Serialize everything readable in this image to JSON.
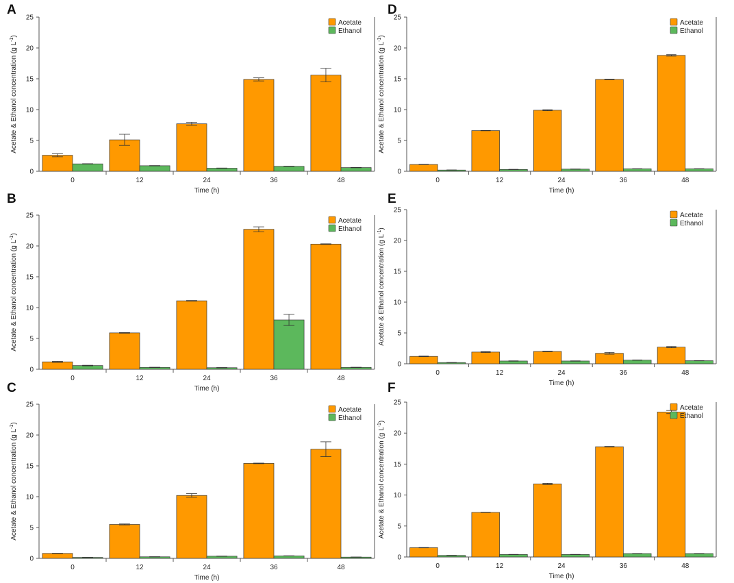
{
  "colors": {
    "acetate": "#ff9900",
    "ethanol": "#5cb85c",
    "axis": "#555555",
    "errorbar": "#333333"
  },
  "chart_data": [
    {
      "panel": "A",
      "type": "bar",
      "categories": [
        "0",
        "12",
        "24",
        "36",
        "48"
      ],
      "series": [
        {
          "name": "Acetate",
          "values": [
            2.6,
            5.1,
            7.7,
            14.9,
            15.6
          ],
          "errors": [
            0.25,
            0.9,
            0.25,
            0.25,
            1.1
          ]
        },
        {
          "name": "Ethanol",
          "values": [
            1.2,
            0.9,
            0.5,
            0.8,
            0.6
          ],
          "errors": [
            0.03,
            0.03,
            0.03,
            0.03,
            0.03
          ]
        }
      ],
      "xlabel": "Time (h)",
      "ylabel": "Acetate & Ethanol concentration (g L",
      "ylabel_sup": "-1",
      "ylabel_end": ")",
      "ylim": [
        0,
        25
      ],
      "yticks": [
        "0",
        "5",
        "10",
        "15",
        "20",
        "25"
      ],
      "legend": "top-right"
    },
    {
      "panel": "B",
      "type": "bar",
      "categories": [
        "0",
        "12",
        "24",
        "36",
        "48"
      ],
      "series": [
        {
          "name": "Acetate",
          "values": [
            1.2,
            5.9,
            11.1,
            22.7,
            20.3
          ],
          "errors": [
            0.08,
            0.05,
            0.05,
            0.4,
            0.05
          ]
        },
        {
          "name": "Ethanol",
          "values": [
            0.6,
            0.3,
            0.25,
            8.0,
            0.3
          ],
          "errors": [
            0.05,
            0.03,
            0.03,
            0.9,
            0.03
          ]
        }
      ],
      "xlabel": "Time (h)",
      "ylabel": "Acetate & Ethanol concentration (g L",
      "ylabel_sup": "-1",
      "ylabel_end": ")",
      "ylim": [
        0,
        25
      ],
      "yticks": [
        "0",
        "5",
        "10",
        "15",
        "20",
        "25"
      ],
      "legend": "top-right"
    },
    {
      "panel": "C",
      "type": "bar",
      "categories": [
        "0",
        "12",
        "24",
        "36",
        "48"
      ],
      "series": [
        {
          "name": "Acetate",
          "values": [
            0.8,
            5.5,
            10.2,
            15.4,
            17.7
          ],
          "errors": [
            0.03,
            0.08,
            0.3,
            0.05,
            1.2
          ]
        },
        {
          "name": "Ethanol",
          "values": [
            0.15,
            0.25,
            0.35,
            0.4,
            0.2
          ],
          "errors": [
            0.02,
            0.02,
            0.02,
            0.02,
            0.02
          ]
        }
      ],
      "xlabel": "Time (h)",
      "ylabel": "Acetate & Ethanol concentration (g L",
      "ylabel_sup": "-1",
      "ylabel_end": ")",
      "ylim": [
        0,
        25
      ],
      "yticks": [
        "0",
        "5",
        "10",
        "15",
        "20",
        "25"
      ],
      "legend": "top-right"
    },
    {
      "panel": "D",
      "type": "bar",
      "categories": [
        "0",
        "12",
        "24",
        "36",
        "48"
      ],
      "series": [
        {
          "name": "Acetate",
          "values": [
            1.1,
            6.6,
            9.9,
            14.9,
            18.8
          ],
          "errors": [
            0.03,
            0.03,
            0.08,
            0.05,
            0.12
          ]
        },
        {
          "name": "Ethanol",
          "values": [
            0.2,
            0.3,
            0.35,
            0.4,
            0.4
          ],
          "errors": [
            0.02,
            0.02,
            0.02,
            0.02,
            0.02
          ]
        }
      ],
      "xlabel": "Time (h)",
      "ylabel": "Acetate & Ethanol concentration (g L",
      "ylabel_sup": "-1",
      "ylabel_end": ")",
      "ylim": [
        0,
        25
      ],
      "yticks": [
        "0",
        "5",
        "10",
        "15",
        "20",
        "25"
      ],
      "legend": "top-right"
    },
    {
      "panel": "E",
      "type": "bar",
      "categories": [
        "0",
        "12",
        "24",
        "36",
        "48"
      ],
      "series": [
        {
          "name": "Acetate",
          "values": [
            1.2,
            1.9,
            2.0,
            1.7,
            2.7
          ],
          "errors": [
            0.05,
            0.08,
            0.05,
            0.15,
            0.1
          ]
        },
        {
          "name": "Ethanol",
          "values": [
            0.2,
            0.45,
            0.45,
            0.6,
            0.5
          ],
          "errors": [
            0.02,
            0.03,
            0.03,
            0.03,
            0.02
          ]
        }
      ],
      "xlabel": "Time (h)",
      "ylabel": "Acetate & Ethanol concentration (g L",
      "ylabel_sup": "-1",
      "ylabel_end": ")",
      "ylim": [
        0,
        25
      ],
      "yticks": [
        "0",
        "5",
        "10",
        "15",
        "20",
        "25"
      ],
      "legend": "top-right"
    },
    {
      "panel": "F",
      "type": "bar",
      "categories": [
        "0",
        "12",
        "24",
        "36",
        "48"
      ],
      "series": [
        {
          "name": "Acetate",
          "values": [
            1.5,
            7.2,
            11.8,
            17.8,
            23.4
          ],
          "errors": [
            0.03,
            0.03,
            0.1,
            0.05,
            0.25
          ]
        },
        {
          "name": "Ethanol",
          "values": [
            0.25,
            0.4,
            0.4,
            0.55,
            0.55
          ],
          "errors": [
            0.02,
            0.02,
            0.02,
            0.02,
            0.02
          ]
        }
      ],
      "xlabel": "Time (h)",
      "ylabel": "Acetate & Ethanol concentration (g L",
      "ylabel_sup": "-1",
      "ylabel_end": ")",
      "ylim": [
        0,
        25
      ],
      "yticks": [
        "0",
        "5",
        "10",
        "15",
        "20",
        "25"
      ],
      "legend": "top-right"
    }
  ]
}
